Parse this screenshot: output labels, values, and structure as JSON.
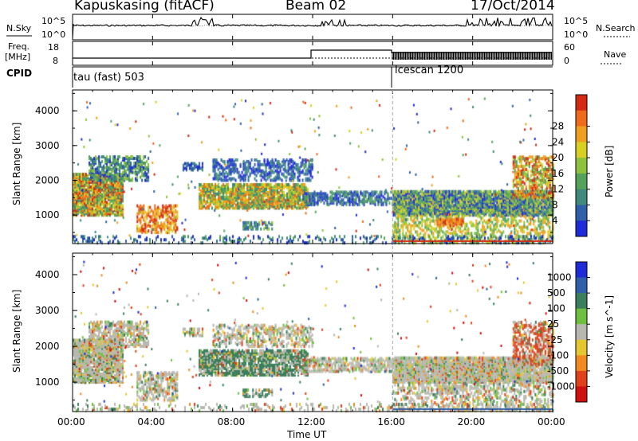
{
  "header": {
    "station": "Kapuskasing (fitACF)",
    "beam": "Beam 02",
    "date": "17/Oct/2014"
  },
  "sky_panel": {
    "left_label": "N.Sky",
    "right_label": "N.Search",
    "left_ticks": [
      "10^5",
      "10^0"
    ],
    "right_ticks": [
      "10^5",
      "10^0"
    ]
  },
  "freq_panel": {
    "left_label_1": "Freq.",
    "left_label_2": "[MHz]",
    "right_label": "Nave",
    "left_ticks": [
      "18",
      "8"
    ],
    "right_ticks": [
      "60",
      "0"
    ]
  },
  "cpid_panel": {
    "label": "CPID",
    "program_1": "tau (fast) 503",
    "program_2": "icescan 1200"
  },
  "chart_data": [
    {
      "type": "heatmap",
      "title": "",
      "xlabel": "Time UT",
      "ylabel": "Slant Range [km]",
      "xlim": [
        "00:00",
        "24:00"
      ],
      "ylim": [
        180,
        4600
      ],
      "y_ticks": [
        1000,
        2000,
        3000,
        4000
      ],
      "colorbar": {
        "label": "Power [dB]",
        "ticks": [
          "4",
          "8",
          "12",
          "16",
          "20",
          "24",
          "28"
        ],
        "colors": [
          "#1e2bd6",
          "#2e5fa8",
          "#3f8a7a",
          "#53a35a",
          "#8fc23c",
          "#d8d022",
          "#f0a020",
          "#ef6a1a",
          "#d42a14"
        ]
      }
    },
    {
      "type": "heatmap",
      "title": "",
      "xlabel": "Time UT",
      "ylabel": "Slant Range [km]",
      "xlim": [
        "00:00",
        "24:00"
      ],
      "ylim": [
        180,
        4600
      ],
      "y_ticks": [
        1000,
        2000,
        3000,
        4000
      ],
      "colorbar": {
        "label": "Velocity [m s^-1]",
        "ticks": [
          "1000",
          "500",
          "100",
          "25",
          "-25",
          "-100",
          "-500",
          "-1000"
        ],
        "colors": [
          "#1e2bd6",
          "#2e5fa8",
          "#3b7f5c",
          "#6fbf3e",
          "#b8b8b0",
          "#e5c830",
          "#f08a20",
          "#e0401a",
          "#d01010"
        ]
      }
    }
  ],
  "x_ticks": [
    "00:00",
    "04:00",
    "08:00",
    "12:00",
    "16:00",
    "20:00",
    "00:00"
  ],
  "x_axis_label": "Time UT"
}
